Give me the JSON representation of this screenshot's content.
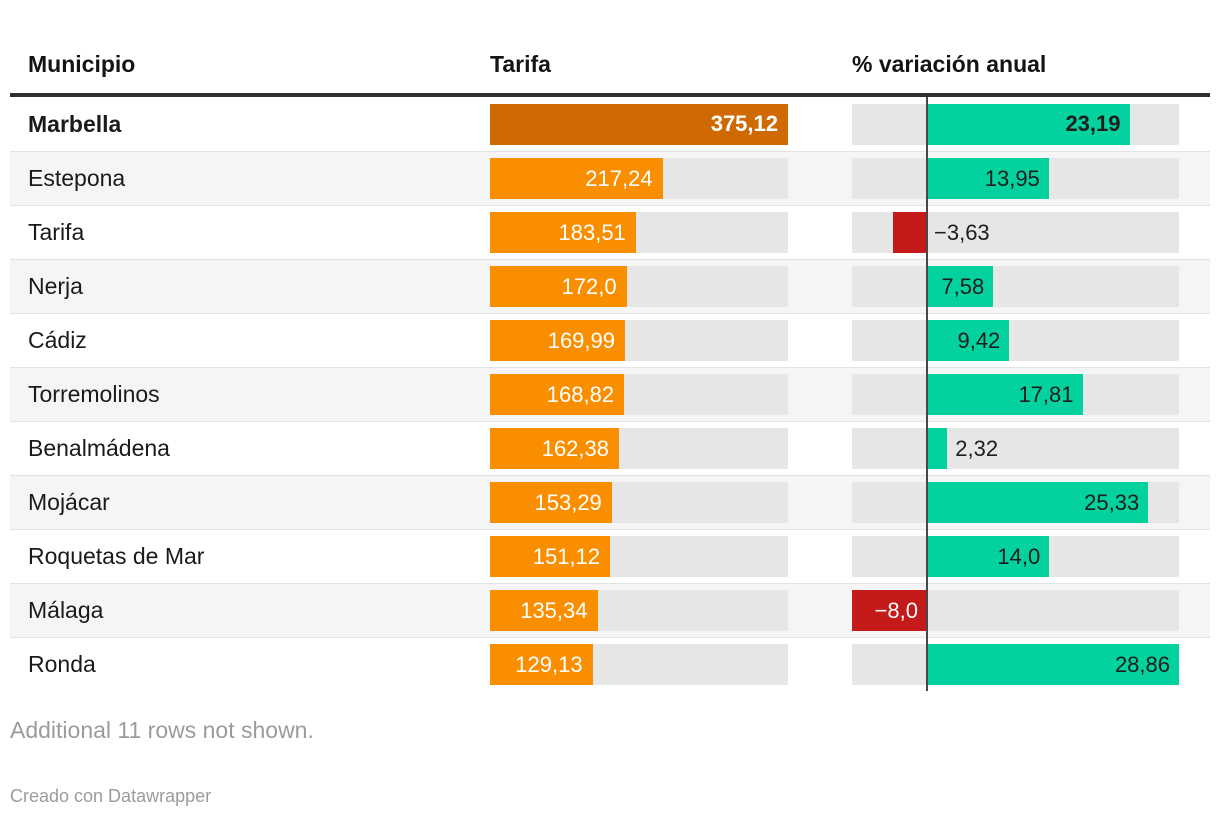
{
  "header": {
    "municipio": "Municipio",
    "tarifa": "Tarifa",
    "variacion": "% variación anual"
  },
  "chart_data": {
    "type": "table",
    "columns": [
      "Municipio",
      "Tarifa",
      "% variación anual"
    ],
    "tarifa_axis": {
      "min": 0,
      "max": 375.12
    },
    "variacion_axis": {
      "min": -8.0,
      "max": 28.86,
      "zero_line": true
    },
    "rows": [
      {
        "municipio": "Marbella",
        "tarifa": 375.12,
        "tarifa_label": "375,12",
        "variacion": 23.19,
        "variacion_label": "23,19",
        "highlight": true
      },
      {
        "municipio": "Estepona",
        "tarifa": 217.24,
        "tarifa_label": "217,24",
        "variacion": 13.95,
        "variacion_label": "13,95",
        "highlight": false
      },
      {
        "municipio": "Tarifa",
        "tarifa": 183.51,
        "tarifa_label": "183,51",
        "variacion": -3.63,
        "variacion_label": "−3,63",
        "highlight": false
      },
      {
        "municipio": "Nerja",
        "tarifa": 172.0,
        "tarifa_label": "172,0",
        "variacion": 7.58,
        "variacion_label": "7,58",
        "highlight": false
      },
      {
        "municipio": "Cádiz",
        "tarifa": 169.99,
        "tarifa_label": "169,99",
        "variacion": 9.42,
        "variacion_label": "9,42",
        "highlight": false
      },
      {
        "municipio": "Torremolinos",
        "tarifa": 168.82,
        "tarifa_label": "168,82",
        "variacion": 17.81,
        "variacion_label": "17,81",
        "highlight": false
      },
      {
        "municipio": "Benalmádena",
        "tarifa": 162.38,
        "tarifa_label": "162,38",
        "variacion": 2.32,
        "variacion_label": "2,32",
        "highlight": false
      },
      {
        "municipio": "Mojácar",
        "tarifa": 153.29,
        "tarifa_label": "153,29",
        "variacion": 25.33,
        "variacion_label": "25,33",
        "highlight": false
      },
      {
        "municipio": "Roquetas de Mar",
        "tarifa": 151.12,
        "tarifa_label": "151,12",
        "variacion": 14.0,
        "variacion_label": "14,0",
        "highlight": false
      },
      {
        "municipio": "Málaga",
        "tarifa": 135.34,
        "tarifa_label": "135,34",
        "variacion": -8.0,
        "variacion_label": "−8,0",
        "highlight": false
      },
      {
        "municipio": "Ronda",
        "tarifa": 129.13,
        "tarifa_label": "129,13",
        "variacion": 28.86,
        "variacion_label": "28,86",
        "highlight": false
      }
    ]
  },
  "colors": {
    "bar_orange": "#F98F00",
    "bar_orange_highlight": "#CF6A02",
    "bar_positive": "#03D29F",
    "bar_negative": "#C41A1A",
    "track": "#E6E6E6",
    "row_alt": "#F5F5F5",
    "zero_line": "#474747"
  },
  "footer": {
    "note": "Additional 11 rows not shown.",
    "attribution": "Creado con Datawrapper"
  }
}
